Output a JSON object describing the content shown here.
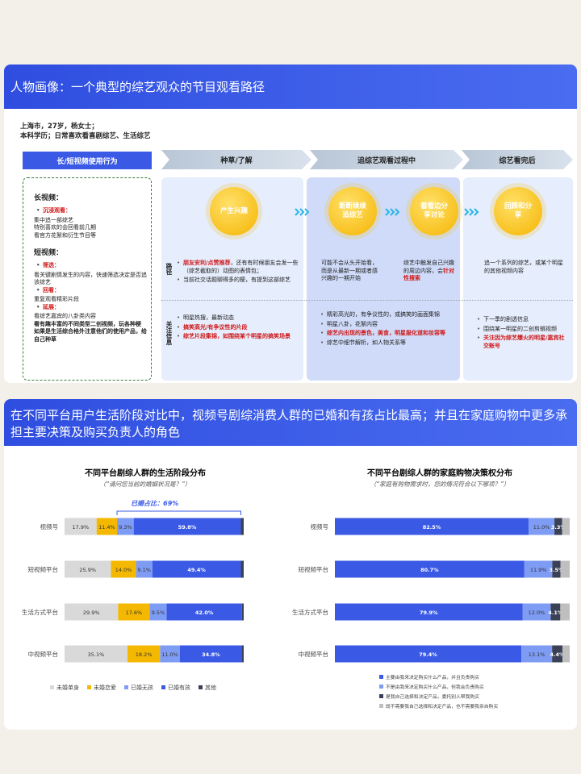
{
  "header": {
    "title": "人物画像：一个典型的综艺观众的节目观看路径"
  },
  "profile": [
    "上海市，27岁，杨女士；",
    "本科学历；日常喜欢看喜剧综艺、生活综艺"
  ],
  "behavior": {
    "title": "长/短视频使用行为",
    "sections": [
      {
        "title": "长视频：",
        "groups": [
          {
            "label": "沉浸观看：",
            "lines": [
              "集中追一部综艺",
              "特别喜欢的会回看前几期",
              "看官方花絮和衍生节目等"
            ]
          }
        ]
      },
      {
        "title": "短视频：",
        "groups": [
          {
            "label": "筛选：",
            "lines": [
              "看关键剧情发生的内容，快速筛选决定是否追该综艺"
            ]
          },
          {
            "label": "回看：",
            "lines": [
              "重复观看精彩片段"
            ]
          },
          {
            "label": "延展：",
            "lines": [
              "看综艺嘉宾的八卦类内容"
            ],
            "bold_lines": [
              "看有趣丰富的不同类型二创视频，玩各种梗",
              "如果是生活综合格外注意他们的使用产品，给自己种草"
            ]
          }
        ]
      }
    ]
  },
  "journey": {
    "stages": [
      "种草/了解",
      "追综艺观看过程中",
      "综艺看完后"
    ],
    "row_labels": [
      "路径",
      "关注信息"
    ],
    "columns": [
      {
        "nodes": [
          "产生兴趣"
        ],
        "path_bullets": [
          [
            {
              "t": "朋友安利/点赞推荐",
              "red": true
            },
            {
              "t": "，还有有时候朋友会发一些（综艺截取的）动图的表情包；"
            }
          ],
          [
            {
              "t": "当前社交话题聊得多的梗，有提到这部综艺"
            }
          ]
        ],
        "focus": [
          [
            {
              "t": "明星热搜，最新动态"
            }
          ],
          [
            {
              "t": "搞笑高光/有争议性的片段",
              "red": true
            }
          ],
          [
            {
              "t": "综艺片段集锦，如围绕某个明星的搞笑场景",
              "red": true
            }
          ]
        ]
      },
      {
        "nodes": [
          "断断续续追综艺",
          "看看边分享讨论"
        ],
        "path_notes": [
          [
            {
              "t": "可能不会从头开始看，而是从最新一期或者感兴趣的一期开始"
            }
          ],
          [
            {
              "t": "综艺中触发自己兴趣的周边内容，会"
            },
            {
              "t": "针对性搜索",
              "red": true
            }
          ]
        ],
        "focus": [
          [
            {
              "t": "精彩高光的，有争议性的，或搞笑的画面集锦"
            }
          ],
          [
            {
              "t": "明星八卦，花絮内容"
            }
          ],
          [
            {
              "t": "综艺内出现的景色，美食，明星服化道和妆容等",
              "red": true
            }
          ],
          [
            {
              "t": "综艺中细节解析，如人物关系等"
            }
          ]
        ]
      },
      {
        "nodes": [
          "回顾和分享"
        ],
        "path_notes": [
          [
            {
              "t": "追一个系列的综艺，或某个明星的其他视频内容"
            }
          ]
        ],
        "focus": [
          [
            {
              "t": "下一季的剧透信息"
            }
          ],
          [
            {
              "t": "围绕某一明星的二创剪辑视频"
            }
          ],
          [
            {
              "t": "关注因为综艺爆火的明星/嘉宾社交账号",
              "red": true
            }
          ]
        ]
      }
    ]
  },
  "section2": {
    "title": "在不同平台用户生活阶段对比中，视频号剧综消费人群的已婚和有孩占比最高；并且在家庭购物中更多承担主要决策及购买负责人的角色"
  },
  "chart_data": [
    {
      "type": "stacked_bar",
      "orientation": "horizontal",
      "title": "不同平台剧综人群的生活阶段分布",
      "subtitle": "（“请问您当前的婚姻状况是？”）",
      "categories": [
        "视频号",
        "短视频平台",
        "生活方式平台",
        "中视频平台"
      ],
      "xlim": [
        0,
        100
      ],
      "legend": "bottom",
      "annotation": "已婚占比：69%",
      "series": [
        {
          "name": "未婚单身",
          "color": "#d9d9d9",
          "values": [
            17.9,
            25.9,
            29.9,
            35.1
          ],
          "value_labels": [
            "17.9%",
            "25.9%",
            "29.9%",
            "35.1%"
          ]
        },
        {
          "name": "未婚恋爱",
          "color": "#f5b800",
          "values": [
            11.4,
            14.0,
            17.6,
            18.2
          ],
          "value_labels": [
            "11.4%",
            "14.0%",
            "17.6%",
            "18.2%"
          ]
        },
        {
          "name": "已婚无孩",
          "color": "#7f9cf5",
          "values": [
            9.3,
            9.1,
            9.5,
            11.0
          ],
          "value_labels": [
            "9.3%",
            "9.1%",
            "9.5%",
            "11.0%"
          ]
        },
        {
          "name": "已婚有孩",
          "color": "#3a5ae6",
          "values": [
            59.8,
            49.4,
            42.0,
            34.8
          ],
          "value_labels": [
            "59.8%",
            "49.4%",
            "42.0%",
            "34.8%"
          ]
        },
        {
          "name": "其他",
          "color": "#3a4055",
          "values": [
            1.6,
            1.6,
            1.0,
            0.9
          ]
        }
      ]
    },
    {
      "type": "stacked_bar",
      "orientation": "horizontal",
      "title": "不同平台剧综人群的家庭购物决策权分布",
      "subtitle": "（“家庭有购物需求时，您的情况符合以下哪项？”）",
      "categories": [
        "视频号",
        "短视频平台",
        "生活方式平台",
        "中视频平台"
      ],
      "xlim": [
        0,
        100
      ],
      "legend": "bottom",
      "series": [
        {
          "name": "主要由我来决定购买什么产品，并且负责购买",
          "color": "#3a5ae6",
          "values": [
            82.5,
            80.7,
            79.9,
            79.4
          ],
          "value_labels": [
            "82.5%",
            "80.7%",
            "79.9%",
            "79.4%"
          ]
        },
        {
          "name": "不是由我来决定购买什么产品，但我会负责购买",
          "color": "#7f9cf5",
          "values": [
            11.0,
            11.9,
            12.0,
            13.1
          ],
          "value_labels": [
            "11.0%",
            "11.9%",
            "12.0%",
            "13.1%"
          ]
        },
        {
          "name": "是我自己选择和决定产品，委托别人帮我购买",
          "color": "#3a4055",
          "values": [
            3.3,
            3.5,
            4.1,
            4.4
          ],
          "value_labels": [
            "3.3%",
            "3.5%",
            "4.1%",
            "4.4%"
          ]
        },
        {
          "name": "既不需要我自己选择和决定产品，也不需要我亲自购买",
          "color": "#bfbfbf",
          "values": [
            3.2,
            3.9,
            4.0,
            3.1
          ]
        }
      ]
    }
  ]
}
